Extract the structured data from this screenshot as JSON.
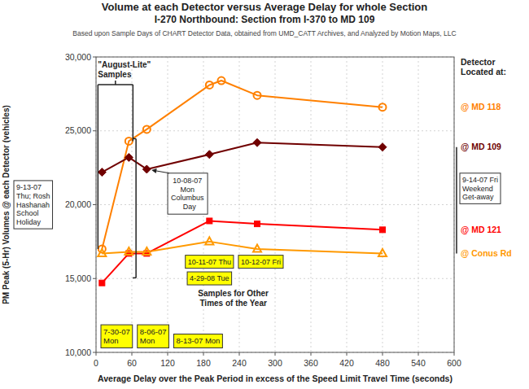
{
  "chart_data": {
    "type": "line",
    "title": [
      "Volume at each Detector versus Average Delay for whole Section",
      "I-270 Northbound: Section from I-370 to MD 109"
    ],
    "subtitle": "Based upon Sample Days of CHART Detector Data, obtained from UMD_CATT Archives, and Analyzed by Motion Maps, LLC",
    "xlabel": "Average Delay over the Peak Period in excess of the Speed Limit Travel Time (seconds)",
    "ylabel": "PM Peak (5-Hr) Volumes @ each Detector (vehicles)",
    "xlim": [
      0,
      600
    ],
    "ylim": [
      10000,
      30000
    ],
    "xticks": [
      0,
      60,
      120,
      180,
      240,
      300,
      360,
      420,
      480,
      540,
      600
    ],
    "yticks": [
      {
        "value": 10000,
        "label": "10,000"
      },
      {
        "value": 15000,
        "label": "15,000"
      },
      {
        "value": 20000,
        "label": "20,000"
      },
      {
        "value": 25000,
        "label": "25,000"
      },
      {
        "value": 30000,
        "label": "30,000"
      }
    ],
    "grid": true,
    "series": [
      {
        "name": "@ MD 118",
        "color": "#FF8000",
        "marker": "circle-open",
        "x": [
          10,
          55,
          85,
          190,
          210,
          270,
          480
        ],
        "values": [
          17000,
          24300,
          25100,
          28100,
          28400,
          27400,
          26600
        ]
      },
      {
        "name": "@ MD 109",
        "color": "#700000",
        "marker": "diamond",
        "x": [
          10,
          55,
          85,
          190,
          270,
          480
        ],
        "values": [
          22200,
          23200,
          22400,
          23400,
          24200,
          23900
        ]
      },
      {
        "name": "@ MD 121",
        "color": "#FF0000",
        "marker": "square",
        "x": [
          10,
          55,
          85,
          190,
          270,
          480
        ],
        "values": [
          14700,
          16700,
          16700,
          18900,
          18700,
          18300
        ]
      },
      {
        "name": "@ Conus Rd",
        "color": "#FF9900",
        "marker": "triangle-open",
        "x": [
          10,
          55,
          85,
          190,
          270,
          480
        ],
        "values": [
          16700,
          16800,
          16800,
          17500,
          17000,
          16700
        ]
      }
    ],
    "annotations": [
      "Detector\nLocated at:",
      "9-14-07 Fri\nWeekend\nGet-away",
      "\"August-Lite\"\nSamples",
      "9-13-07\nThu; Rosh\nHashanah\nSchool\nHoliday",
      "10-08-07\nMon\nColumbus\n  Day",
      "7-30-07\nMon",
      "8-06-07\nMon",
      "8-13-07 Mon",
      "10-11-07 Thu",
      "10-12-07 Fri",
      "4-29-08 Tue",
      "Samples for Other\nTimes of the Year"
    ]
  }
}
